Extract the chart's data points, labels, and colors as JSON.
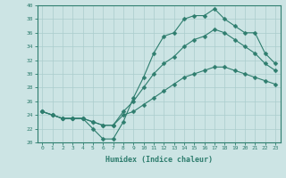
{
  "xlabel": "Humidex (Indice chaleur)",
  "x": [
    0,
    1,
    2,
    3,
    4,
    5,
    6,
    7,
    8,
    9,
    10,
    11,
    12,
    13,
    14,
    15,
    16,
    17,
    18,
    19,
    20,
    21,
    22,
    23
  ],
  "line1": [
    24.5,
    24,
    23.5,
    23.5,
    23.5,
    22,
    20.5,
    20.5,
    23,
    26.5,
    29.5,
    33,
    35.5,
    36,
    38,
    38.5,
    38.5,
    39.5,
    38,
    37,
    36,
    36,
    33,
    31.5
  ],
  "line2": [
    24.5,
    24,
    23.5,
    23.5,
    23.5,
    23,
    22.5,
    22.5,
    24.5,
    26,
    28,
    30,
    31.5,
    32.5,
    34,
    35,
    35.5,
    36.5,
    36,
    35,
    34,
    33,
    31.5,
    30.5
  ],
  "line3": [
    24.5,
    24,
    23.5,
    23.5,
    23.5,
    23,
    22.5,
    22.5,
    24,
    24.5,
    25.5,
    26.5,
    27.5,
    28.5,
    29.5,
    30,
    30.5,
    31,
    31,
    30.5,
    30,
    29.5,
    29,
    28.5
  ],
  "line_color": "#2e7d6e",
  "bg_color": "#cce4e4",
  "grid_color": "#aacccc",
  "ylim": [
    20,
    40
  ],
  "yticks": [
    20,
    22,
    24,
    26,
    28,
    30,
    32,
    34,
    36,
    38,
    40
  ],
  "xticks": [
    0,
    1,
    2,
    3,
    4,
    5,
    6,
    7,
    8,
    9,
    10,
    11,
    12,
    13,
    14,
    15,
    16,
    17,
    18,
    19,
    20,
    21,
    22,
    23
  ]
}
